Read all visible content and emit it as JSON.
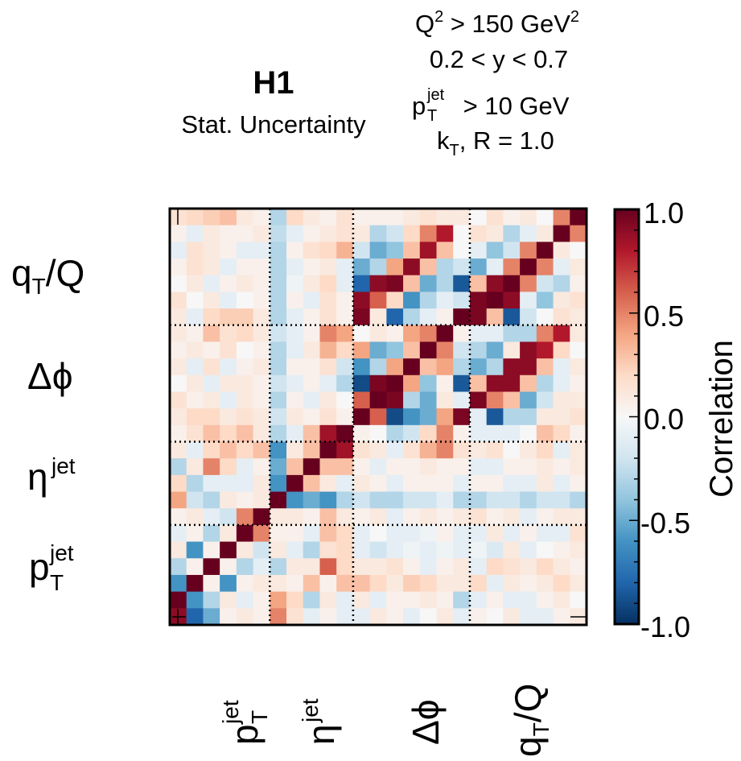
{
  "chart_data": {
    "type": "heatmap",
    "title": "H1",
    "subtitle": "Stat. Uncertainty",
    "cuts": {
      "line1_base": "Q",
      "line1_sup": "2",
      "line1_rest": " > 150 GeV",
      "line1_sup2": "2",
      "line2": "0.2 < y < 0.7",
      "line3_base": "p",
      "line3_sup": "jet",
      "line3_sub": "T",
      "line3_rest": " > 10 GeV",
      "line4_base": "k",
      "line4_sub": "T",
      "line4_rest": ", R = 1.0"
    },
    "variables": [
      {
        "key": "pt",
        "base": "p",
        "sup": "jet",
        "sub": "T",
        "bins": 6
      },
      {
        "key": "eta",
        "base": "η",
        "sup": "jet",
        "sub": "",
        "bins": 5
      },
      {
        "key": "dphi",
        "base": "Δϕ",
        "sup": "",
        "sub": "",
        "bins": 7
      },
      {
        "key": "qtq",
        "base": "q",
        "sup": "",
        "sub": "T",
        "rest": "/Q",
        "bins": 7
      }
    ],
    "colorbar": {
      "label": "Correlation",
      "ticks": [
        "1.0",
        "0.5",
        "0.0",
        "-0.5",
        "-1.0"
      ],
      "range": [
        -1,
        1
      ]
    },
    "bins_total": 25,
    "matrix_rows_top_to_bottom": [
      [
        0.15,
        0.2,
        0.25,
        0.3,
        0.1,
        0.05,
        -0.3,
        0.2,
        0.1,
        0.05,
        0.15,
        0.05,
        0.05,
        0.05,
        0.1,
        0.15,
        0.1,
        0.1,
        0.0,
        0.15,
        0.05,
        0.1,
        0.0,
        0.5,
        1.0
      ],
      [
        0.05,
        -0.1,
        0.1,
        0.05,
        0.05,
        0.1,
        -0.25,
        -0.1,
        0.05,
        0.1,
        0.15,
        0.1,
        -0.3,
        -0.2,
        0.2,
        0.5,
        0.8,
        0.0,
        0.15,
        0.1,
        -0.3,
        -0.1,
        0.1,
        1.0,
        0.5
      ],
      [
        -0.1,
        0.15,
        0.1,
        0.05,
        -0.1,
        -0.1,
        -0.3,
        0.05,
        0.15,
        0.2,
        0.35,
        -0.2,
        -0.5,
        -0.4,
        0.3,
        0.85,
        0.3,
        0.0,
        -0.1,
        -0.4,
        -0.2,
        0.5,
        1.0,
        0.1,
        0.0
      ],
      [
        0.05,
        0.15,
        0.1,
        -0.1,
        0.05,
        0.05,
        -0.3,
        -0.1,
        0.05,
        0.1,
        -0.1,
        -0.5,
        -0.3,
        0.4,
        0.9,
        0.3,
        -0.3,
        -0.2,
        -0.5,
        -0.1,
        0.5,
        1.0,
        0.5,
        -0.1,
        0.1
      ],
      [
        0.0,
        0.1,
        -0.1,
        0.05,
        0.1,
        0.05,
        -0.3,
        -0.05,
        0.1,
        0.2,
        -0.1,
        -0.8,
        0.9,
        0.95,
        0.3,
        -0.5,
        -0.3,
        -0.85,
        0.3,
        0.9,
        1.0,
        0.5,
        -0.2,
        -0.3,
        0.05
      ],
      [
        0.15,
        0.0,
        0.1,
        -0.1,
        0.0,
        0.05,
        -0.3,
        0.05,
        -0.1,
        0.15,
        0.05,
        0.9,
        0.6,
        0.2,
        -0.6,
        -0.3,
        -0.1,
        -0.2,
        0.95,
        1.0,
        0.9,
        -0.1,
        -0.4,
        0.1,
        0.15
      ],
      [
        0.1,
        -0.1,
        0.2,
        0.25,
        0.25,
        0.1,
        -0.3,
        -0.1,
        0.05,
        0.15,
        0.05,
        0.95,
        0.1,
        -0.8,
        -0.3,
        -0.1,
        0.05,
        1.0,
        0.95,
        0.3,
        -0.85,
        -0.2,
        0.0,
        0.15,
        0.1
      ],
      [
        0.1,
        0.05,
        0.3,
        0.15,
        0.2,
        0.1,
        -0.2,
        -0.1,
        0.05,
        0.5,
        0.4,
        0.0,
        0.1,
        0.05,
        0.4,
        0.5,
        1.0,
        0.05,
        -0.1,
        -0.1,
        -0.3,
        -0.3,
        0.5,
        0.8,
        0.1
      ],
      [
        0.05,
        0.1,
        0.05,
        0.15,
        0.0,
        0.05,
        -0.3,
        -0.1,
        0.1,
        0.35,
        0.2,
        0.4,
        -0.5,
        -0.4,
        0.3,
        1.0,
        0.5,
        -0.2,
        -0.3,
        -0.5,
        0.1,
        0.9,
        0.8,
        0.2,
        0.0
      ],
      [
        0.1,
        -0.1,
        0.15,
        -0.1,
        0.05,
        0.1,
        -0.3,
        0.05,
        0.05,
        0.15,
        -0.2,
        -0.6,
        -0.3,
        0.4,
        1.0,
        0.3,
        0.4,
        -0.3,
        -0.5,
        -0.3,
        0.9,
        0.9,
        0.3,
        -0.1,
        0.1
      ],
      [
        0.0,
        0.1,
        -0.1,
        0.1,
        0.1,
        0.05,
        -0.2,
        -0.1,
        0.05,
        -0.1,
        -0.3,
        -0.9,
        0.95,
        1.0,
        0.4,
        -0.4,
        0.05,
        -0.85,
        0.3,
        0.9,
        0.9,
        0.3,
        -0.3,
        -0.1,
        0.05
      ],
      [
        0.15,
        0.05,
        0.1,
        -0.1,
        0.1,
        0.05,
        -0.3,
        0.05,
        -0.1,
        0.1,
        0.0,
        0.6,
        1.0,
        0.95,
        -0.3,
        -0.5,
        0.1,
        -0.1,
        0.95,
        0.5,
        0.3,
        -0.5,
        -0.2,
        0.1,
        0.1
      ],
      [
        0.1,
        0.2,
        0.2,
        0.1,
        0.15,
        0.1,
        -0.2,
        0.1,
        0.05,
        0.15,
        0.05,
        1.0,
        0.6,
        -0.9,
        -0.6,
        -0.5,
        0.4,
        0.95,
        -0.1,
        -0.85,
        -0.3,
        -0.3,
        0.1,
        0.1,
        0.15
      ],
      [
        0.05,
        0.15,
        0.3,
        0.2,
        0.3,
        0.1,
        -0.3,
        -0.1,
        0.3,
        0.85,
        1.0,
        0.05,
        0.0,
        -0.3,
        -0.2,
        0.2,
        0.5,
        0.05,
        -0.1,
        -0.1,
        -0.1,
        0.0,
        0.3,
        0.2,
        0.05
      ],
      [
        0.1,
        -0.1,
        0.2,
        0.3,
        0.2,
        0.3,
        -0.6,
        0.1,
        0.3,
        1.0,
        0.85,
        0.15,
        0.1,
        -0.1,
        0.15,
        0.35,
        0.5,
        0.15,
        0.1,
        0.15,
        0.0,
        0.1,
        0.2,
        -0.1,
        0.1
      ],
      [
        -0.3,
        0.1,
        0.5,
        0.2,
        -0.1,
        0.05,
        -0.5,
        0.3,
        1.0,
        0.3,
        0.3,
        0.05,
        -0.1,
        0.05,
        0.05,
        0.1,
        0.05,
        0.05,
        -0.1,
        -0.1,
        0.05,
        0.05,
        0.1,
        0.05,
        0.1
      ],
      [
        0.2,
        -0.3,
        -0.1,
        -0.1,
        -0.1,
        0.1,
        -0.6,
        1.0,
        0.3,
        0.1,
        -0.1,
        0.1,
        0.05,
        -0.1,
        0.05,
        0.05,
        0.05,
        -0.1,
        0.05,
        0.05,
        -0.1,
        -0.1,
        0.1,
        -0.1,
        0.05
      ],
      [
        0.4,
        -0.2,
        -0.3,
        0.1,
        0.05,
        0.1,
        1.0,
        -0.6,
        -0.5,
        -0.6,
        -0.3,
        -0.2,
        -0.3,
        -0.3,
        -0.2,
        -0.2,
        -0.1,
        -0.3,
        -0.3,
        -0.2,
        -0.2,
        -0.3,
        -0.2,
        -0.2,
        -0.3
      ],
      [
        0.05,
        0.1,
        -0.1,
        -0.2,
        0.5,
        1.0,
        0.1,
        0.1,
        0.05,
        0.3,
        0.1,
        0.05,
        0.1,
        -0.1,
        0.05,
        0.1,
        0.05,
        0.1,
        0.15,
        0.05,
        0.1,
        -0.1,
        0.05,
        0.1,
        0.1
      ],
      [
        -0.1,
        0.05,
        -0.3,
        0.1,
        1.0,
        0.5,
        0.05,
        0.05,
        -0.1,
        0.3,
        0.2,
        -0.1,
        0.0,
        -0.1,
        -0.1,
        -0.05,
        0.05,
        -0.1,
        -0.1,
        0.1,
        -0.1,
        0.05,
        -0.1,
        -0.1,
        0.15
      ],
      [
        0.1,
        -0.6,
        0.05,
        1.0,
        0.1,
        -0.2,
        0.1,
        -0.1,
        -0.3,
        0.15,
        0.2,
        -0.1,
        -0.2,
        -0.1,
        -0.05,
        -0.1,
        -0.05,
        -0.1,
        -0.05,
        -0.15,
        0.1,
        -0.1,
        0.0,
        0.05,
        0.1
      ],
      [
        -0.3,
        0.05,
        1.0,
        0.05,
        -0.3,
        -0.1,
        -0.3,
        0.1,
        0.1,
        0.6,
        0.2,
        0.1,
        0.1,
        0.15,
        0.05,
        -0.1,
        0.05,
        0.1,
        -0.1,
        0.2,
        0.15,
        0.1,
        0.2,
        0.1,
        0.05
      ],
      [
        -0.6,
        1.0,
        0.05,
        -0.6,
        0.05,
        0.1,
        0.1,
        0.05,
        0.3,
        0.05,
        0.3,
        0.3,
        0.2,
        0.1,
        0.25,
        0.2,
        0.1,
        0.1,
        0.2,
        -0.1,
        0.1,
        0.05,
        0.1,
        0.2,
        0.1
      ],
      [
        1.0,
        -0.6,
        -0.3,
        0.1,
        -0.1,
        0.05,
        0.4,
        0.2,
        -0.3,
        0.1,
        -0.1,
        0.1,
        -0.1,
        0.05,
        0.05,
        0.1,
        0.05,
        -0.3,
        -0.1,
        0.05,
        -0.1,
        -0.1,
        0.05,
        0.1,
        0.0
      ],
      [
        0.9,
        -0.8,
        -0.5,
        0.05,
        0.1,
        0.05,
        0.5,
        0.15,
        -0.1,
        0.05,
        -0.1,
        -0.1,
        0.1,
        0.05,
        -0.1,
        0.0,
        0.1,
        -0.1,
        0.05,
        0.0,
        0.1,
        -0.1,
        -0.1,
        0.05,
        0.1
      ]
    ]
  }
}
